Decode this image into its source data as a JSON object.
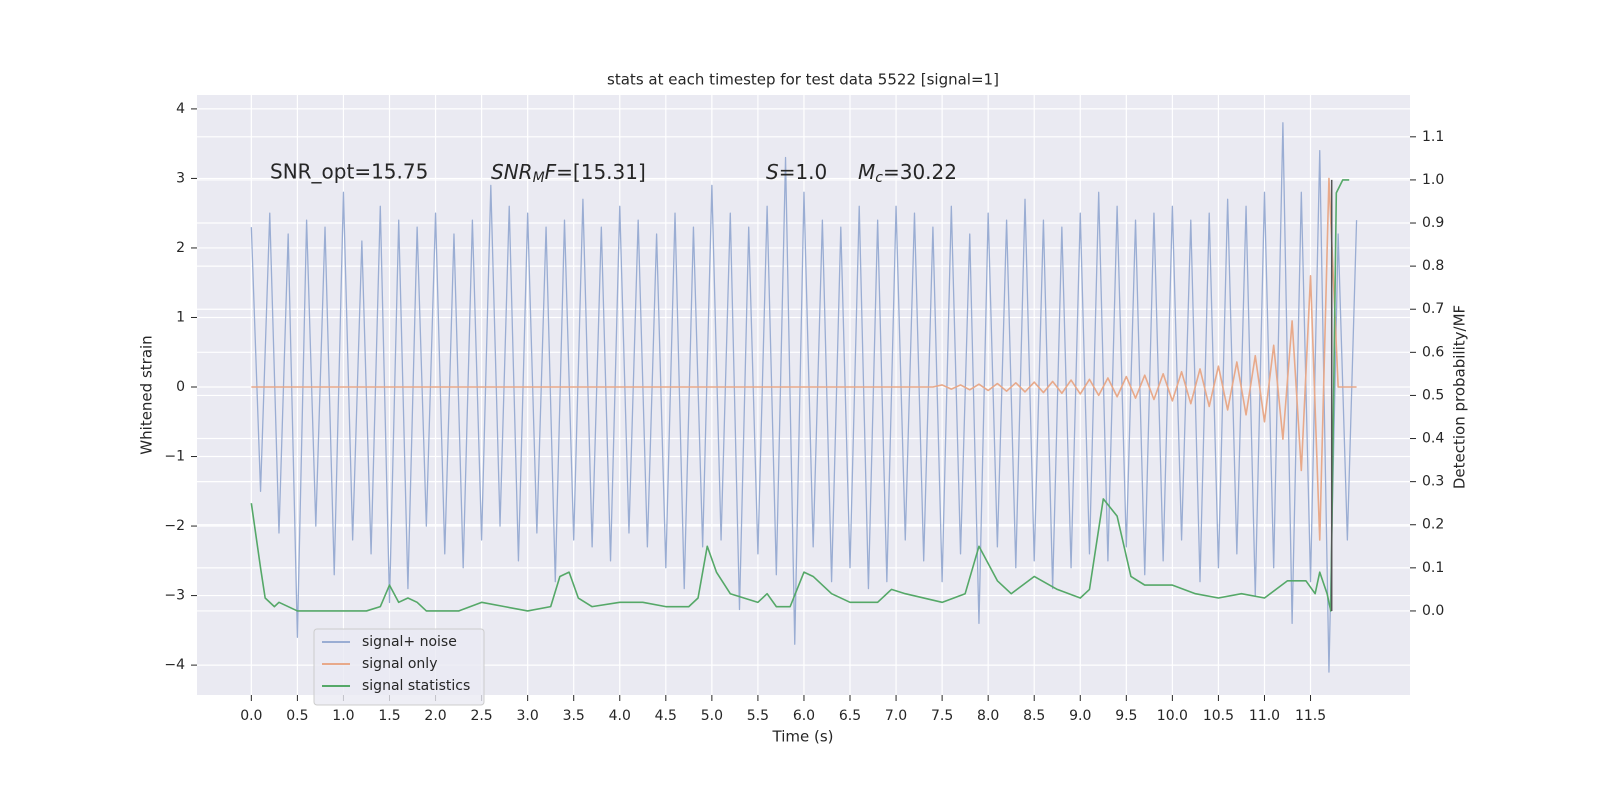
{
  "chart_data": {
    "type": "line",
    "title": "stats at each timestep for test data 5522 [signal=1]",
    "xlabel": "Time (s)",
    "ylabel": "Whitened strain",
    "y2label": "Detection probability/MF",
    "xlim": [
      -0.59,
      12.58
    ],
    "ylim": [
      -4.43,
      4.2
    ],
    "y2lim": [
      -0.195,
      1.197
    ],
    "xticks": [
      {
        "value": 0,
        "label": "0.0"
      },
      0.5,
      {
        "value": 1,
        "label": "1.0"
      },
      1.5,
      {
        "value": 2,
        "label": "2.0"
      },
      2.5,
      {
        "value": 3,
        "label": "3.0"
      },
      3.5,
      {
        "value": 4,
        "label": "4.0"
      },
      4.5,
      {
        "value": 5,
        "label": "5.0"
      },
      5.5,
      {
        "value": 6,
        "label": "6.0"
      },
      6.5,
      {
        "value": 7,
        "label": "7.0"
      },
      7.5,
      {
        "value": 8,
        "label": "8.0"
      },
      8.5,
      {
        "value": 9,
        "label": "9.0"
      },
      9.5,
      {
        "value": 10,
        "label": "10.0"
      },
      10.5,
      {
        "value": 11,
        "label": "11.0"
      },
      11.5
    ],
    "yticks": [
      {
        "value": -4,
        "label": "−4"
      },
      {
        "value": -3,
        "label": "−3"
      },
      {
        "value": -2,
        "label": "−2"
      },
      {
        "value": -1,
        "label": "−1"
      },
      0,
      1,
      2,
      3,
      4
    ],
    "y2ticks": [
      {
        "value": 0,
        "label": "0.0"
      },
      0.1,
      0.2,
      0.3,
      0.4,
      0.5,
      0.6,
      0.7,
      0.8,
      0.9,
      {
        "value": 1,
        "label": "1.0"
      },
      1.1
    ],
    "grid": true,
    "legend": "lower left",
    "annotations": [
      {
        "text": "SNR_opt=15.75"
      },
      {
        "parts": [
          "SNR",
          "M",
          "F",
          "=[15.31]"
        ]
      },
      {
        "parts": [
          "S",
          "=1.0"
        ]
      },
      {
        "parts": [
          "M",
          "c",
          "=30.22"
        ]
      }
    ],
    "vline": {
      "x": 11.73,
      "color": "#555555",
      "ymin": 0,
      "ymax": 1
    },
    "x": [
      0,
      0.1,
      0.2,
      0.3,
      0.4,
      0.5,
      0.6,
      0.7,
      0.8,
      0.9,
      1,
      1.1,
      1.2,
      1.3,
      1.4,
      1.5,
      1.6,
      1.7,
      1.8,
      1.9,
      2,
      2.1,
      2.2,
      2.3,
      2.4,
      2.5,
      2.6,
      2.7,
      2.8,
      2.9,
      3,
      3.1,
      3.2,
      3.3,
      3.4,
      3.5,
      3.6,
      3.7,
      3.8,
      3.9,
      4,
      4.1,
      4.2,
      4.3,
      4.4,
      4.5,
      4.6,
      4.7,
      4.8,
      4.9,
      5,
      5.1,
      5.2,
      5.3,
      5.4,
      5.5,
      5.6,
      5.7,
      5.8,
      5.9,
      6,
      6.1,
      6.2,
      6.3,
      6.4,
      6.5,
      6.6,
      6.7,
      6.8,
      6.9,
      7,
      7.1,
      7.2,
      7.3,
      7.4,
      7.5,
      7.6,
      7.7,
      7.8,
      7.9,
      8,
      8.1,
      8.2,
      8.3,
      8.4,
      8.5,
      8.6,
      8.7,
      8.8,
      8.9,
      9,
      9.1,
      9.2,
      9.3,
      9.4,
      9.5,
      9.6,
      9.7,
      9.8,
      9.9,
      10,
      10.1,
      10.2,
      10.3,
      10.4,
      10.5,
      10.6,
      10.7,
      10.8,
      10.9,
      11,
      11.1,
      11.2,
      11.3,
      11.4,
      11.5,
      11.6,
      11.7,
      11.8,
      11.9,
      12
    ],
    "series": [
      {
        "name": "signal+ noise",
        "color": "#9aadd3",
        "values": [
          2.3,
          -1.5,
          2.5,
          -2.1,
          2.2,
          -3.6,
          2.4,
          -2.0,
          2.3,
          -2.7,
          2.8,
          -2.2,
          2.1,
          -2.4,
          2.6,
          -3.1,
          2.4,
          -2.9,
          2.3,
          -2.0,
          2.5,
          -2.4,
          2.2,
          -2.6,
          2.4,
          -2.2,
          2.9,
          -2.0,
          2.6,
          -2.5,
          2.5,
          -2.1,
          2.3,
          -2.8,
          2.4,
          -2.2,
          2.7,
          -2.3,
          2.3,
          -2.5,
          2.6,
          -2.1,
          2.4,
          -2.3,
          2.2,
          -2.6,
          2.5,
          -2.9,
          2.3,
          -2.3,
          2.9,
          -2.2,
          2.5,
          -3.2,
          2.3,
          -2.4,
          2.6,
          -2.7,
          3.3,
          -3.7,
          2.8,
          -2.3,
          2.4,
          -2.8,
          2.3,
          -2.6,
          2.6,
          -2.9,
          2.4,
          -2.8,
          2.6,
          -2.2,
          2.5,
          -2.5,
          2.3,
          -2.8,
          2.6,
          -2.4,
          2.2,
          -3.4,
          2.5,
          -2.3,
          2.4,
          -2.6,
          2.7,
          -2.5,
          2.4,
          -2.9,
          2.3,
          -2.6,
          2.5,
          -2.4,
          2.8,
          -2.5,
          2.6,
          -2.3,
          2.4,
          -2.7,
          2.5,
          -2.5,
          2.6,
          -2.2,
          2.4,
          -2.8,
          2.5,
          -2.6,
          2.7,
          -2.4,
          2.6,
          -3.0,
          2.8,
          -2.6,
          3.8,
          -3.4,
          2.8,
          -2.8,
          3.4,
          -4.1,
          2.2,
          -2.2,
          2.4
        ]
      },
      {
        "name": "signal only",
        "color": "#e8a98a",
        "values": [
          0,
          0,
          0,
          0,
          0,
          0,
          0,
          0,
          0,
          0,
          0,
          0,
          0,
          0,
          0,
          0,
          0,
          0,
          0,
          0,
          0,
          0,
          0,
          0,
          0,
          0,
          0,
          0,
          0,
          0,
          0,
          0,
          0,
          0,
          0,
          0,
          0,
          0,
          0,
          0,
          0,
          0,
          0,
          0,
          0,
          0,
          0,
          0,
          0,
          0,
          0,
          0,
          0,
          0,
          0,
          0,
          0,
          0,
          0,
          0,
          0,
          0,
          0,
          0,
          0,
          0,
          0,
          0,
          0,
          0,
          0,
          0,
          0,
          0,
          0,
          0.03,
          -0.03,
          0.03,
          -0.04,
          0.04,
          -0.05,
          0.05,
          -0.06,
          0.06,
          -0.07,
          0.07,
          -0.08,
          0.08,
          -0.09,
          0.1,
          -0.1,
          0.11,
          -0.12,
          0.13,
          -0.14,
          0.15,
          -0.16,
          0.17,
          -0.18,
          0.19,
          -0.2,
          0.22,
          -0.24,
          0.26,
          -0.28,
          0.3,
          -0.33,
          0.36,
          -0.4,
          0.45,
          -0.5,
          0.6,
          -0.75,
          0.95,
          -1.2,
          1.6,
          -2.2,
          3.0,
          0,
          0,
          0
        ]
      },
      {
        "name": "signal statistics",
        "color": "#55a868",
        "axis": "y2",
        "x": [
          0,
          0.1,
          0.15,
          0.25,
          0.3,
          0.5,
          0.75,
          1,
          1.25,
          1.4,
          1.5,
          1.6,
          1.7,
          1.8,
          1.9,
          2,
          2.25,
          2.5,
          2.75,
          3,
          3.25,
          3.35,
          3.45,
          3.55,
          3.7,
          4,
          4.25,
          4.5,
          4.75,
          4.85,
          4.95,
          5.05,
          5.2,
          5.5,
          5.6,
          5.7,
          5.85,
          6,
          6.1,
          6.3,
          6.5,
          6.8,
          6.95,
          7.1,
          7.5,
          7.75,
          7.9,
          8.1,
          8.25,
          8.5,
          8.75,
          9,
          9.1,
          9.25,
          9.4,
          9.55,
          9.7,
          10,
          10.25,
          10.5,
          10.75,
          11,
          11.25,
          11.45,
          11.55,
          11.6,
          11.68,
          11.72,
          11.78,
          11.85,
          11.92
        ],
        "values": [
          0.25,
          0.1,
          0.03,
          0.01,
          0.02,
          0,
          0,
          0,
          0,
          0.01,
          0.06,
          0.02,
          0.03,
          0.02,
          0,
          0,
          0,
          0.02,
          0.01,
          0,
          0.01,
          0.08,
          0.09,
          0.03,
          0.01,
          0.02,
          0.02,
          0.01,
          0.01,
          0.03,
          0.15,
          0.09,
          0.04,
          0.02,
          0.04,
          0.01,
          0.01,
          0.09,
          0.08,
          0.04,
          0.02,
          0.02,
          0.05,
          0.04,
          0.02,
          0.04,
          0.15,
          0.07,
          0.04,
          0.08,
          0.05,
          0.03,
          0.05,
          0.26,
          0.22,
          0.08,
          0.06,
          0.06,
          0.04,
          0.03,
          0.04,
          0.03,
          0.07,
          0.07,
          0.04,
          0.09,
          0.04,
          0,
          0.97,
          1,
          1
        ]
      }
    ]
  }
}
